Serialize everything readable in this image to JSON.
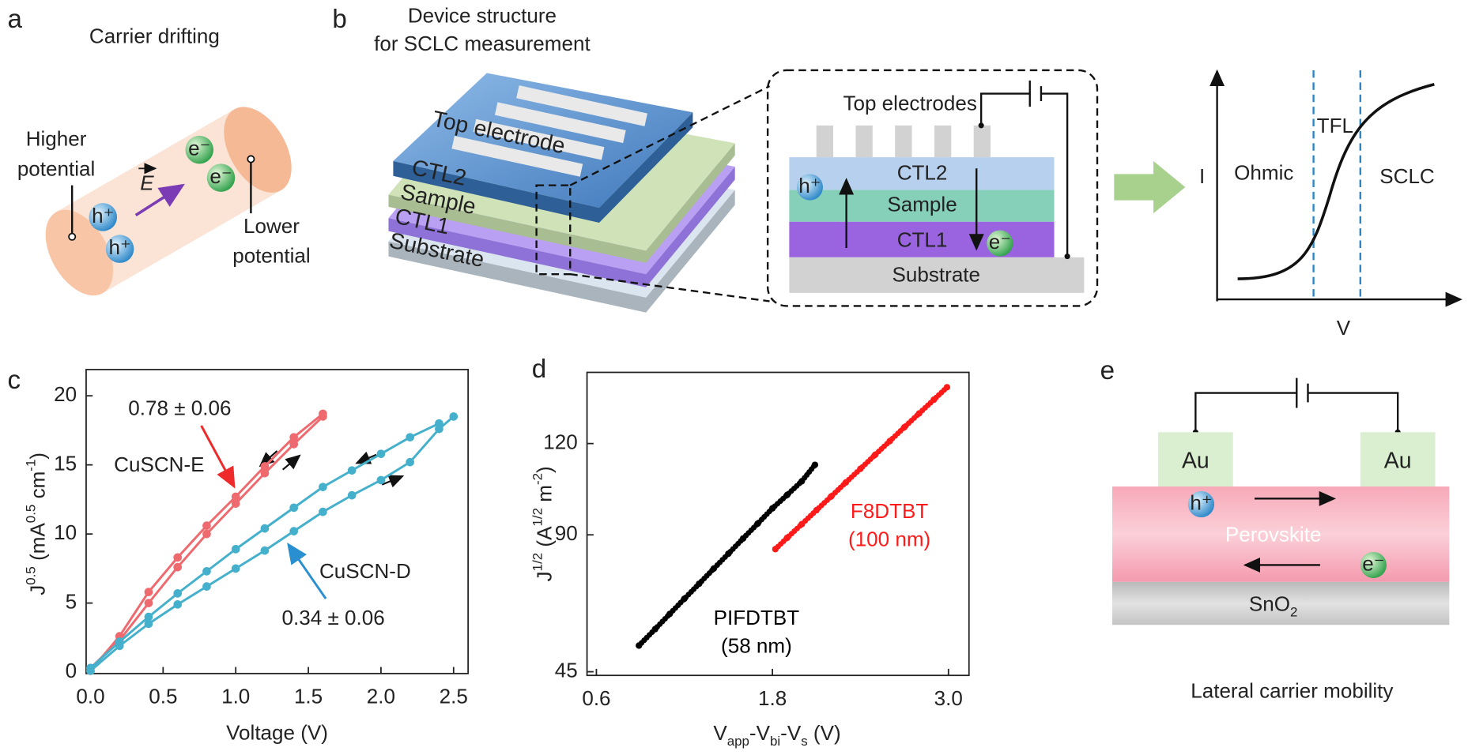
{
  "diagrams": {
    "a": {
      "label": "a",
      "title": "Carrier drifting",
      "higher": [
        "Higher",
        "potential"
      ],
      "lower": [
        "Lower",
        "potential"
      ],
      "field": "E",
      "holes": [
        "h⁺",
        "h⁺"
      ],
      "electrons": [
        "e⁻",
        "e⁻"
      ]
    },
    "b": {
      "label": "b",
      "title": [
        "Device structure",
        "for SCLC measurement"
      ],
      "stack": [
        "Top electrode",
        "CTL2",
        "Sample",
        "CTL1",
        "Substrate"
      ],
      "zoom": {
        "electrodes": "Top electrodes",
        "layers": [
          "CTL2",
          "Sample",
          "CTL1",
          "Substrate"
        ],
        "hole": "h⁺",
        "electron": "e⁻"
      },
      "iv": {
        "y": "I",
        "x": "V",
        "regions": [
          "Ohmic",
          "TFL",
          "SCLC"
        ]
      }
    },
    "e": {
      "label": "e",
      "electrodes": [
        "Au",
        "Au"
      ],
      "hole": "h⁺",
      "electron": "e⁻",
      "active": "Perovskite",
      "transport": [
        {
          "t": "SnO"
        },
        {
          "t": "2",
          "s": "sub"
        }
      ],
      "caption": "Lateral carrier mobility"
    }
  },
  "chart_data": [
    {
      "type": "line",
      "label": "c",
      "xlabel": "Voltage (V)",
      "ylabel": [
        {
          "t": "J"
        },
        {
          "t": "0.5",
          "s": "sup"
        },
        {
          "t": " (mA"
        },
        {
          "t": "0.5",
          "s": "sup"
        },
        {
          "t": " cm"
        },
        {
          "t": "-1",
          "s": "sup"
        },
        {
          "t": ")"
        }
      ],
      "xlim": [
        -0.03,
        2.6
      ],
      "ylim": [
        -0.1,
        21.9
      ],
      "xticks": [
        {
          "value": 0,
          "label": "0.0"
        },
        0.5,
        {
          "value": 1,
          "label": "1.0"
        },
        1.5,
        {
          "value": 2,
          "label": "2.0"
        },
        2.5
      ],
      "yticks": [
        0,
        5,
        10,
        15,
        20
      ],
      "series": [
        {
          "name": "CuSCN-E",
          "color": "#ee6a6e",
          "x": [
            0.0,
            0.2,
            0.4,
            0.6,
            0.8,
            1.0,
            1.2,
            1.4,
            1.6
          ],
          "values": [
            0.3,
            2.3,
            5.0,
            7.6,
            10.0,
            12.2,
            14.4,
            16.5,
            18.5
          ]
        },
        {
          "color": "#ee6a6e",
          "x": [
            1.6,
            1.4,
            1.2,
            1.0,
            0.8,
            0.6,
            0.4,
            0.2,
            0.0
          ],
          "values": [
            18.7,
            17.0,
            14.9,
            12.7,
            10.6,
            8.3,
            5.8,
            2.6,
            0.1
          ]
        },
        {
          "name": "CuSCN-D",
          "color": "#45b0cc",
          "x": [
            0.0,
            0.2,
            0.4,
            0.6,
            0.8,
            1.0,
            1.2,
            1.4,
            1.6,
            1.8,
            2.0,
            2.2,
            2.4,
            2.5
          ],
          "values": [
            0.1,
            1.9,
            3.5,
            4.9,
            6.2,
            7.5,
            8.8,
            10.2,
            11.6,
            12.8,
            13.9,
            15.2,
            17.6,
            18.5
          ]
        },
        {
          "color": "#45b0cc",
          "x": [
            2.4,
            2.2,
            2.0,
            1.8,
            1.6,
            1.4,
            1.2,
            1.0,
            0.8,
            0.6,
            0.4,
            0.2,
            0.0
          ],
          "values": [
            18.0,
            17.0,
            15.8,
            14.6,
            13.4,
            11.9,
            10.4,
            8.9,
            7.3,
            5.7,
            4.0,
            2.2,
            0.3
          ]
        }
      ],
      "annotations": [
        "0.78 ± 0.06",
        "0.34 ± 0.06"
      ]
    },
    {
      "type": "scatter",
      "label": "d",
      "xlabel": [
        {
          "t": "V"
        },
        {
          "t": "app",
          "s": "sub"
        },
        {
          "t": "-V"
        },
        {
          "t": "bi",
          "s": "sub"
        },
        {
          "t": "-V"
        },
        {
          "t": "s",
          "s": "sub"
        },
        {
          "t": " (V)"
        }
      ],
      "ylabel": [
        {
          "t": "J"
        },
        {
          "t": "1/2",
          "s": "sup"
        },
        {
          "t": " (A"
        },
        {
          "t": "1/2",
          "s": "sup"
        },
        {
          "t": " m"
        },
        {
          "t": "-2",
          "s": "sup"
        },
        {
          "t": ")"
        }
      ],
      "xlim": [
        0.536,
        3.14
      ],
      "ylim": [
        43.8,
        143.4
      ],
      "xticks": [
        0.6,
        1.8,
        {
          "value": 3,
          "label": "3.0"
        }
      ],
      "yticks": [
        45,
        90,
        120
      ],
      "series": [
        {
          "name": "PIFDTBT",
          "color": "#000000",
          "x": [
            0.89,
            1.0,
            1.1,
            1.2,
            1.3,
            1.4,
            1.5,
            1.6,
            1.7,
            1.8,
            1.9,
            2.0,
            2.09
          ],
          "values": [
            53.6,
            59.0,
            64.0,
            69.0,
            73.9,
            78.9,
            83.8,
            88.8,
            93.7,
            98.7,
            103.1,
            107.6,
            113.0
          ]
        },
        {
          "name": "F8DTBT",
          "color": "#ff1a1a",
          "x": [
            1.82,
            1.9,
            2.0,
            2.1,
            2.2,
            2.3,
            2.4,
            2.5,
            2.6,
            2.7,
            2.8,
            2.9,
            2.99
          ],
          "values": [
            85.3,
            89.0,
            93.5,
            98.1,
            102.6,
            107.2,
            111.7,
            116.3,
            120.8,
            125.4,
            129.9,
            134.4,
            138.5
          ]
        }
      ],
      "annotations": [
        "(58 nm)",
        "(100 nm)"
      ]
    }
  ]
}
